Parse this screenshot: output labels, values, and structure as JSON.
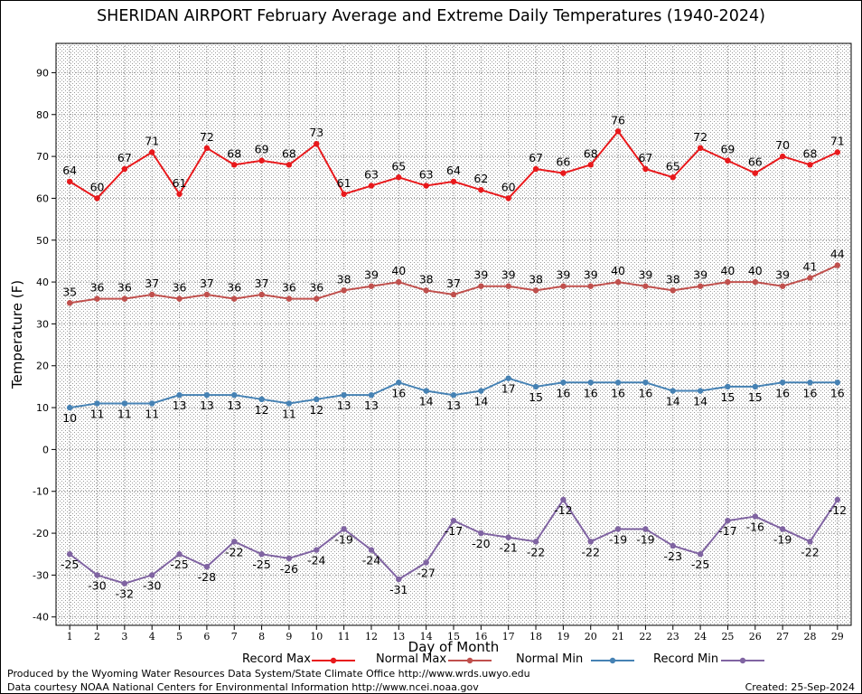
{
  "title": "SHERIDAN AIRPORT February Average and Extreme Daily Temperatures (1940-2024)",
  "credit_line1": "Produced by the Wyoming Water Resources Data System/State Climate Office http://www.wrds.uwyo.edu",
  "credit_line2": "Data courtesy NOAA National Centers for Environmental Information http://www.ncei.noaa.gov",
  "created": "Created: 25-Sep-2024",
  "chart_data": {
    "type": "line",
    "title": "SHERIDAN AIRPORT February Average and Extreme Daily Temperatures (1940-2024)",
    "xlabel": "Day of Month",
    "ylabel": "Temperature (F)",
    "x": [
      1,
      2,
      3,
      4,
      5,
      6,
      7,
      8,
      9,
      10,
      11,
      12,
      13,
      14,
      15,
      16,
      17,
      18,
      19,
      20,
      21,
      22,
      23,
      24,
      25,
      26,
      27,
      28,
      29
    ],
    "xlim": [
      0.5,
      29.5
    ],
    "ylim": [
      -42,
      97
    ],
    "yticks": [
      -40,
      -30,
      -20,
      -10,
      0,
      10,
      20,
      30,
      40,
      50,
      60,
      70,
      80,
      90
    ],
    "grid": true,
    "legend_position": "bottom",
    "series": [
      {
        "name": "Record Max",
        "color": "#e8191c",
        "label_pos": "above",
        "values": [
          64,
          60,
          67,
          71,
          61,
          72,
          68,
          69,
          68,
          73,
          61,
          63,
          65,
          63,
          64,
          62,
          60,
          67,
          66,
          68,
          76,
          67,
          65,
          72,
          69,
          66,
          70,
          68,
          71
        ]
      },
      {
        "name": "Normal Max",
        "color": "#c0504d",
        "label_pos": "above",
        "values": [
          35,
          36,
          36,
          37,
          36,
          37,
          36,
          37,
          36,
          36,
          38,
          39,
          40,
          38,
          37,
          39,
          39,
          38,
          39,
          39,
          40,
          39,
          38,
          39,
          40,
          40,
          39,
          41,
          44
        ]
      },
      {
        "name": "Normal Min",
        "color": "#4682b4",
        "label_pos": "below",
        "values": [
          10,
          11,
          11,
          11,
          13,
          13,
          13,
          12,
          11,
          12,
          13,
          13,
          16,
          14,
          13,
          14,
          17,
          15,
          16,
          16,
          16,
          16,
          14,
          14,
          15,
          15,
          16,
          16,
          16
        ]
      },
      {
        "name": "Record Min",
        "color": "#8064a2",
        "label_pos": "below",
        "values": [
          -25,
          -30,
          -32,
          -30,
          -25,
          -28,
          -22,
          -25,
          -26,
          -24,
          -19,
          -24,
          -31,
          -27,
          -17,
          -20,
          -21,
          -22,
          -12,
          -22,
          -19,
          -19,
          -23,
          -25,
          -17,
          -16,
          -19,
          -22,
          -12
        ]
      }
    ]
  }
}
